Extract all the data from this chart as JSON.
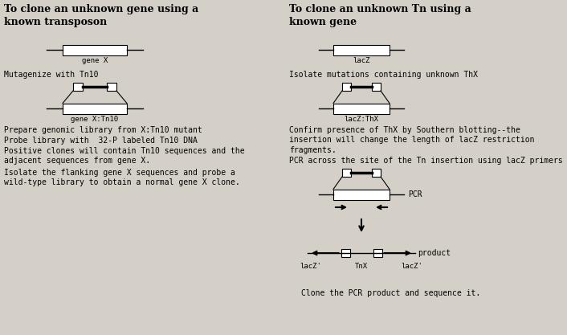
{
  "bg_color": "#d4d0c8",
  "title_left_line1": "To clone an unknown gene using a",
  "title_left_line2": "known transposon",
  "title_right_line1": "To clone an unknown Tn using a",
  "title_right_line2": "known gene",
  "left_texts": [
    "Mutagenize with Tn10",
    "Prepare genomic library from X:Tn10 mutant",
    "Probe library with  32-P labeled Tn10 DNA",
    "Positive clones will contain Tn10 sequences and the\nadjacent sequences from gene X.",
    "Isolate the flanking gene X sequences and probe a\nwild-type library to obtain a normal gene X clone."
  ],
  "right_texts": [
    "Isolate mutations containing unknown ThX",
    "Confirm presence of ThX by Southern blotting--the\ninsertion will change the length of lacZ restriction\nfragments.",
    "PCR across the site of the Tn insertion using lacZ primers",
    "Clone the PCR product and sequence it."
  ],
  "font_size_title": 9,
  "font_size_body": 7,
  "font_size_label": 6.5
}
